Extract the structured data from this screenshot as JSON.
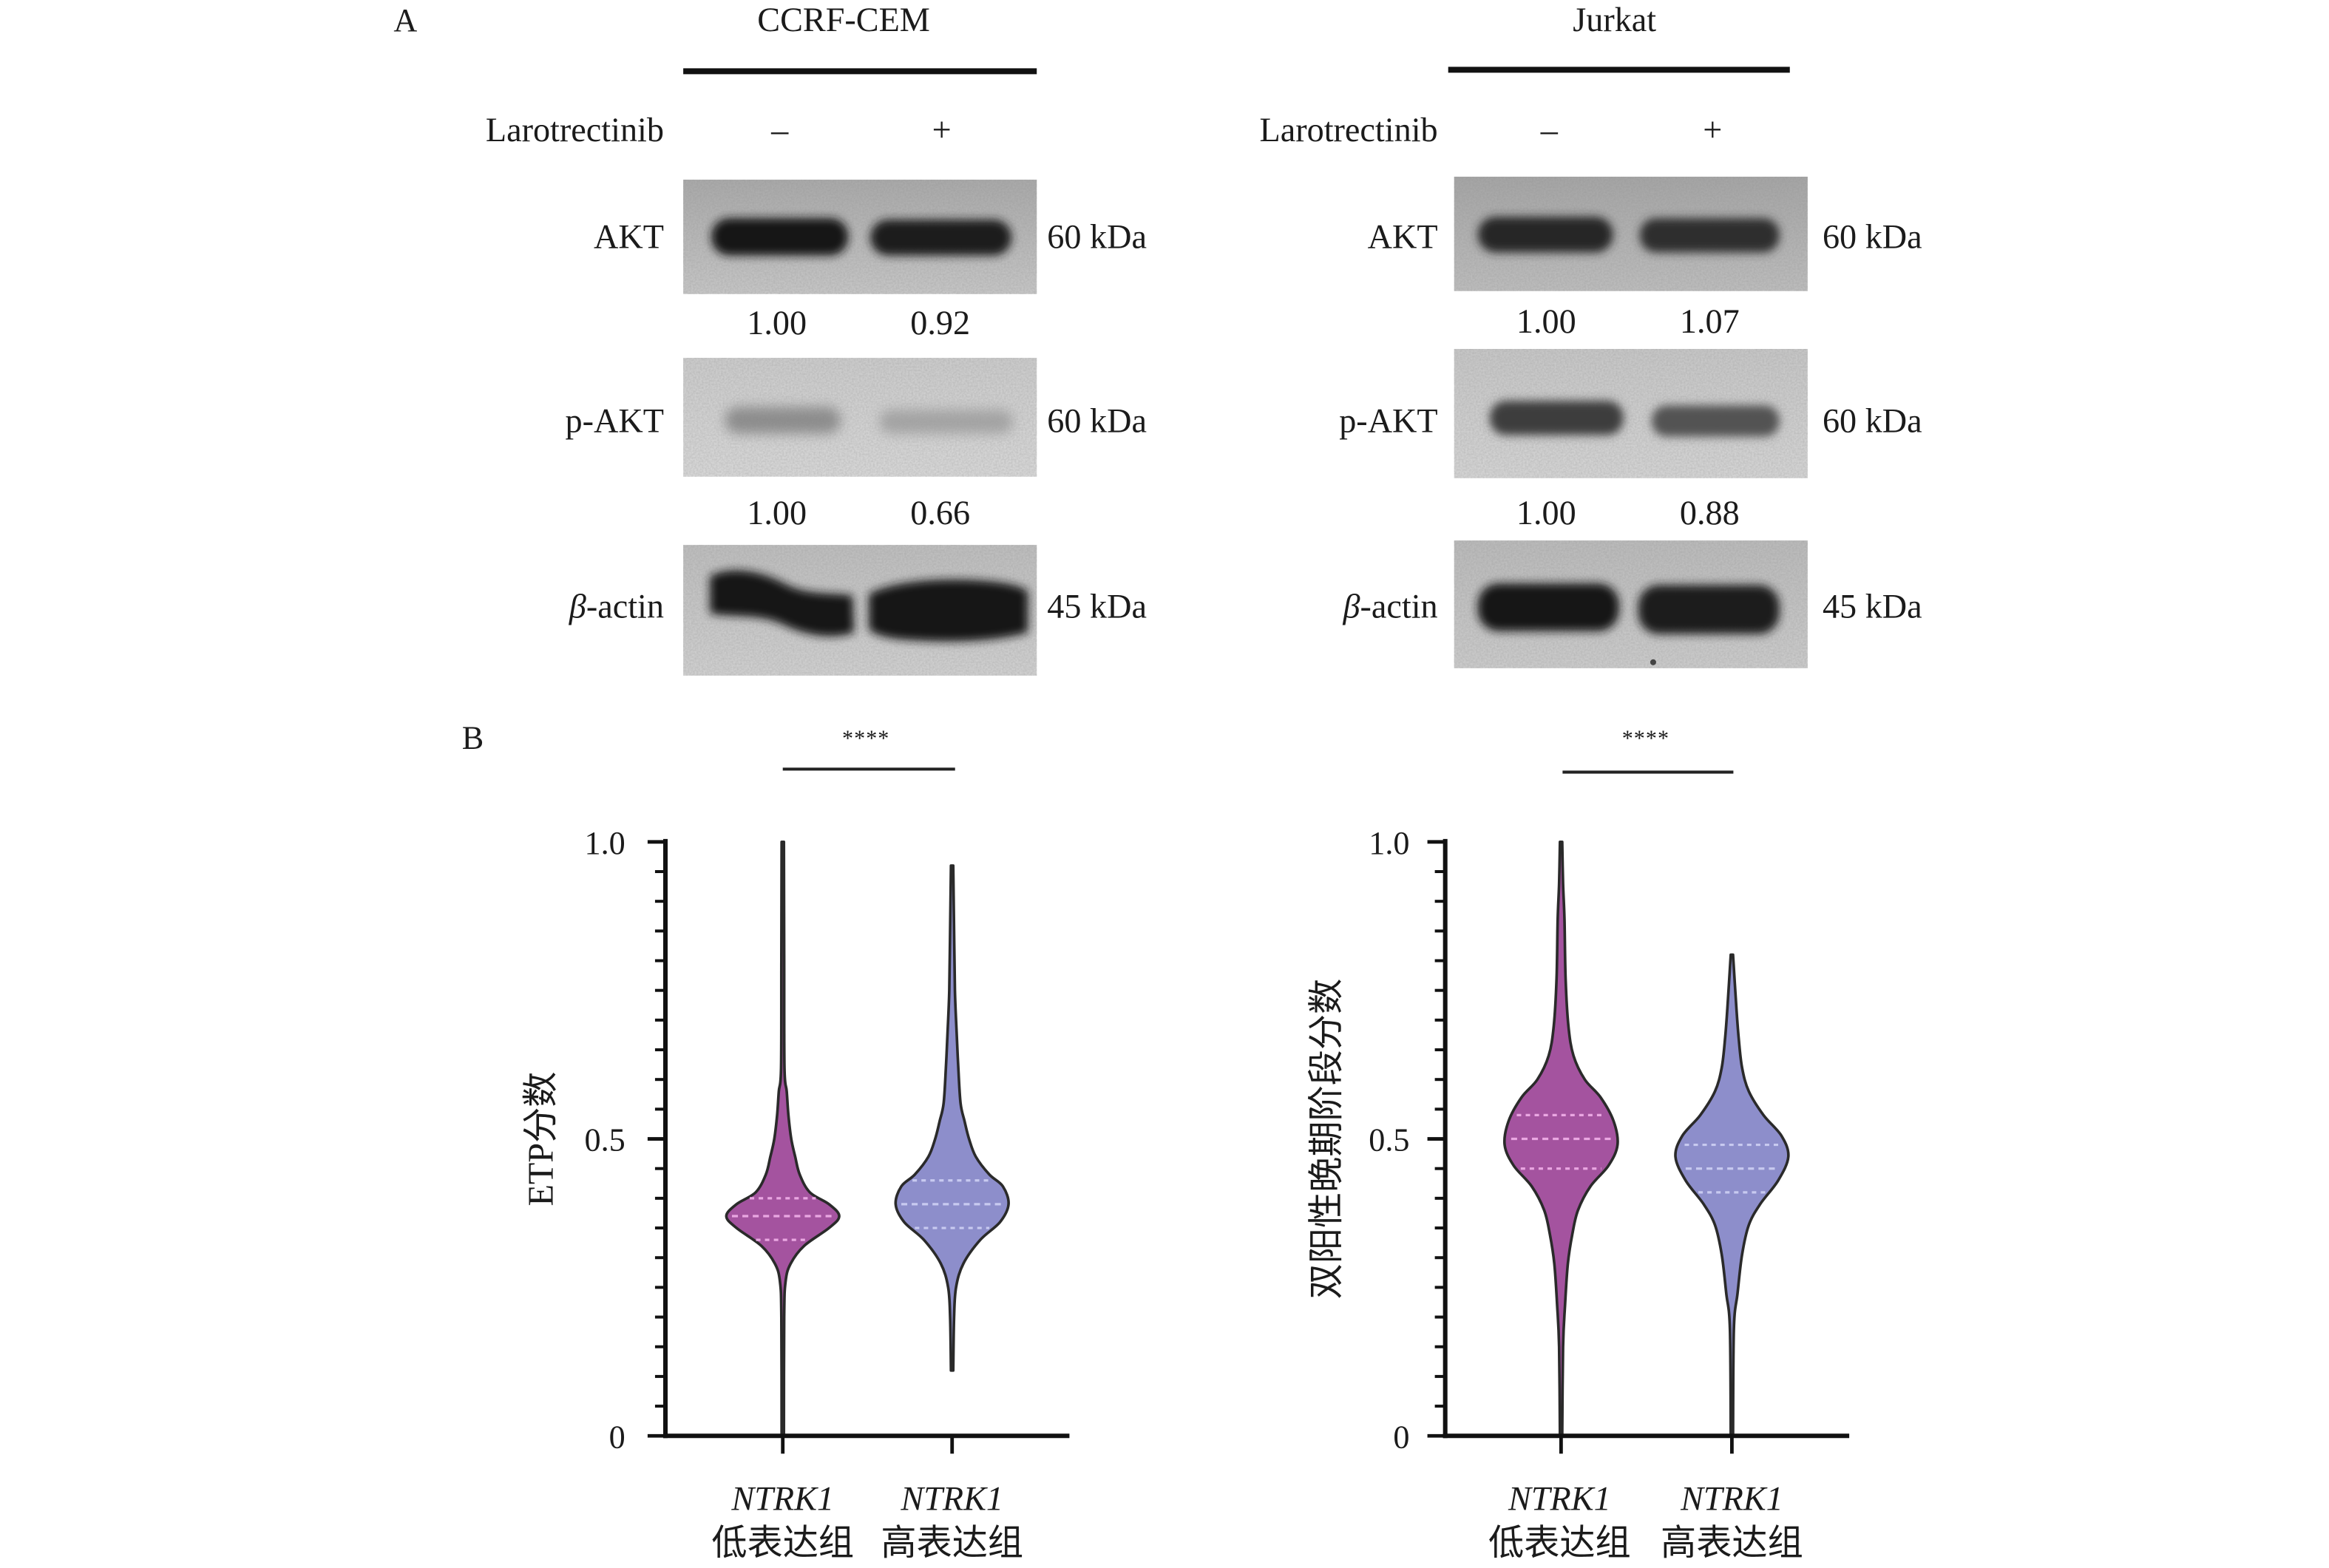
{
  "panel_a": {
    "label": "A",
    "cell_lines": [
      {
        "name": "CCRF-CEM",
        "treatment": "Larotrectinib",
        "lanes": [
          "–",
          "+"
        ],
        "blots": [
          {
            "label": "AKT",
            "mw": "60 kDa",
            "ratios": [
              "1.00",
              "0.92"
            ]
          },
          {
            "label": "p-AKT",
            "mw": "60 kDa",
            "ratios": [
              "1.00",
              "0.66"
            ]
          },
          {
            "label_italic": "β",
            "label": "-actin",
            "mw": "45 kDa"
          }
        ]
      },
      {
        "name": "Jurkat",
        "treatment": "Larotrectinib",
        "lanes": [
          "–",
          "+"
        ],
        "blots": [
          {
            "label": "AKT",
            "mw": "60 kDa",
            "ratios": [
              "1.00",
              "1.07"
            ]
          },
          {
            "label": "p-AKT",
            "mw": "60 kDa",
            "ratios": [
              "1.00",
              "0.88"
            ]
          },
          {
            "label_italic": "β",
            "label": "-actin",
            "mw": "45 kDa"
          }
        ]
      }
    ]
  },
  "panel_b": {
    "label": "B"
  },
  "chart_data": [
    {
      "type": "violin",
      "ylabel": "ETP分数",
      "ylim": [
        0,
        1.0
      ],
      "yticks": [
        {
          "value": 0,
          "label": "0"
        },
        {
          "value": 0.5,
          "label": "0.5"
        },
        {
          "value": 1.0,
          "label": "1.0"
        }
      ],
      "y_minor_step": 0.05,
      "grid": false,
      "categories": [
        {
          "gene": "NTRK1",
          "group": "低表达组"
        },
        {
          "gene": "NTRK1",
          "group": "高表达组"
        }
      ],
      "significance": {
        "between": [
          0,
          1
        ],
        "label": "****"
      },
      "series": [
        {
          "category": 0,
          "min": 0,
          "max": 1.0,
          "q1": 0.33,
          "median": 0.37,
          "q3": 0.4,
          "color": "#a4539f",
          "quartile_color": "#eaa7e2",
          "density": [
            [
              0,
              0.02
            ],
            [
              0.2,
              0.025
            ],
            [
              0.26,
              0.05
            ],
            [
              0.29,
              0.14
            ],
            [
              0.32,
              0.38
            ],
            [
              0.35,
              0.82
            ],
            [
              0.37,
              1.0
            ],
            [
              0.39,
              0.82
            ],
            [
              0.41,
              0.48
            ],
            [
              0.44,
              0.3
            ],
            [
              0.47,
              0.22
            ],
            [
              0.5,
              0.15
            ],
            [
              0.54,
              0.1
            ],
            [
              0.58,
              0.07
            ],
            [
              0.62,
              0.03
            ],
            [
              0.8,
              0.025
            ],
            [
              1.0,
              0.02
            ]
          ]
        },
        {
          "category": 1,
          "min": 0.11,
          "max": 0.96,
          "q1": 0.35,
          "median": 0.39,
          "q3": 0.43,
          "color": "#8d8ecb",
          "quartile_color": "#c8caf0",
          "density": [
            [
              0.11,
              0.02
            ],
            [
              0.2,
              0.035
            ],
            [
              0.25,
              0.07
            ],
            [
              0.29,
              0.2
            ],
            [
              0.33,
              0.5
            ],
            [
              0.36,
              0.85
            ],
            [
              0.39,
              1.0
            ],
            [
              0.42,
              0.9
            ],
            [
              0.44,
              0.66
            ],
            [
              0.47,
              0.42
            ],
            [
              0.5,
              0.3
            ],
            [
              0.53,
              0.22
            ],
            [
              0.56,
              0.15
            ],
            [
              0.62,
              0.11
            ],
            [
              0.68,
              0.08
            ],
            [
              0.75,
              0.05
            ],
            [
              0.85,
              0.035
            ],
            [
              0.96,
              0.02
            ]
          ]
        }
      ]
    },
    {
      "type": "violin",
      "ylabel": "双阳性晚期阶段分数",
      "ylim": [
        0,
        1.0
      ],
      "yticks": [
        {
          "value": 0,
          "label": "0"
        },
        {
          "value": 0.5,
          "label": "0.5"
        },
        {
          "value": 1.0,
          "label": "1.0"
        }
      ],
      "y_minor_step": 0.05,
      "grid": false,
      "categories": [
        {
          "gene": "NTRK1",
          "group": "低表达组"
        },
        {
          "gene": "NTRK1",
          "group": "高表达组"
        }
      ],
      "significance": {
        "between": [
          0,
          1
        ],
        "label": "****"
      },
      "series": [
        {
          "category": 0,
          "min": 0,
          "max": 1.0,
          "q1": 0.45,
          "median": 0.5,
          "q3": 0.54,
          "color": "#a4539f",
          "quartile_color": "#eaa7e2",
          "density": [
            [
              0,
              0.02
            ],
            [
              0.15,
              0.035
            ],
            [
              0.22,
              0.07
            ],
            [
              0.29,
              0.12
            ],
            [
              0.34,
              0.2
            ],
            [
              0.38,
              0.3
            ],
            [
              0.42,
              0.52
            ],
            [
              0.455,
              0.84
            ],
            [
              0.49,
              1.0
            ],
            [
              0.53,
              0.93
            ],
            [
              0.57,
              0.7
            ],
            [
              0.6,
              0.42
            ],
            [
              0.64,
              0.22
            ],
            [
              0.69,
              0.13
            ],
            [
              0.77,
              0.08
            ],
            [
              0.87,
              0.06
            ],
            [
              0.93,
              0.035
            ],
            [
              1.0,
              0.02
            ]
          ]
        },
        {
          "category": 1,
          "min": 0,
          "max": 0.81,
          "q1": 0.41,
          "median": 0.45,
          "q3": 0.49,
          "color": "#8d8ecb",
          "quartile_color": "#c8caf0",
          "density": [
            [
              0,
              0.02
            ],
            [
              0.18,
              0.035
            ],
            [
              0.24,
              0.1
            ],
            [
              0.305,
              0.18
            ],
            [
              0.355,
              0.3
            ],
            [
              0.39,
              0.5
            ],
            [
              0.43,
              0.82
            ],
            [
              0.47,
              1.0
            ],
            [
              0.505,
              0.88
            ],
            [
              0.54,
              0.56
            ],
            [
              0.58,
              0.3
            ],
            [
              0.62,
              0.18
            ],
            [
              0.67,
              0.12
            ],
            [
              0.72,
              0.08
            ],
            [
              0.81,
              0.02
            ]
          ]
        }
      ]
    }
  ]
}
